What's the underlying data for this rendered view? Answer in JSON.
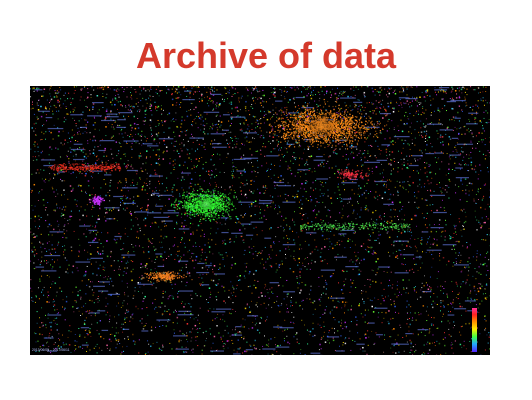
{
  "slide": {
    "title": "Archive of data",
    "title_color": "#d4392b",
    "background": "#ffffff"
  },
  "visualization": {
    "background": "#000000",
    "date_range": "2013/06/05 – 2017/06/11",
    "hotspot_colors": {
      "orange_cluster": "#ff8c1a",
      "green_cluster": "#33ff33",
      "magenta_cluster": "#cc33ff",
      "red_band": "#ff3322"
    },
    "legend": {
      "gradient_colors": [
        "#ff3399",
        "#ff2222",
        "#ff8800",
        "#ffee00",
        "#44ff44",
        "#22aaff",
        "#5522ff"
      ]
    }
  }
}
